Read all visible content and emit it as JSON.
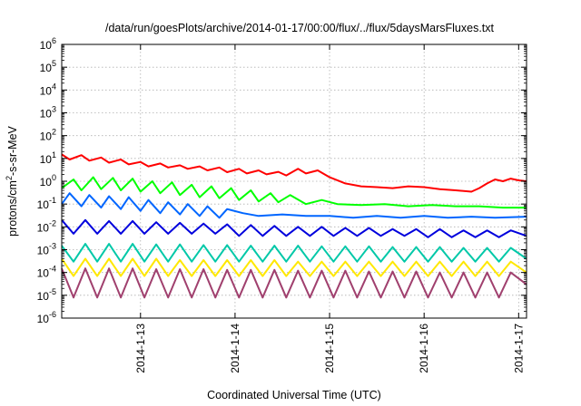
{
  "chart_data": {
    "type": "line",
    "title": "/data/run/goesPlots/archive/2014-01-17/00:00/flux/../flux/5daysMarsFluxes.txt",
    "xlabel": "Coordinated Universal Time (UTC)",
    "ylabel": "protons/cm²-s-sr-MeV",
    "ylabel_parts": {
      "pre": "protons/cm",
      "sup": "2",
      "post": "-s-sr-MeV"
    },
    "yscale": "log",
    "ylim_exponents": [
      -6,
      6
    ],
    "ytick_base": "10",
    "yticks_exponents": [
      "-6",
      "-5",
      "-4",
      "-3",
      "-2",
      "-1",
      "0",
      "1",
      "2",
      "3",
      "4",
      "5",
      "6"
    ],
    "xlim": [
      "2014-01-12T04:00",
      "2014-01-17T02:00"
    ],
    "xticks": [
      {
        "date": "2014-01-13T00:00",
        "label": "2014-1-13"
      },
      {
        "date": "2014-01-14T00:00",
        "label": "2014-1-14"
      },
      {
        "date": "2014-01-15T00:00",
        "label": "2014-1-15"
      },
      {
        "date": "2014-01-16T00:00",
        "label": "2014-1-16"
      },
      {
        "date": "2014-01-17T00:00",
        "label": "2014-1-17"
      }
    ],
    "grid": true,
    "legend": "none",
    "series": [
      {
        "color": "#ff0000",
        "x": [
          "2014-01-12T04:00",
          "2014-01-12T06:00",
          "2014-01-12T09:00",
          "2014-01-12T11:00",
          "2014-01-12T14:00",
          "2014-01-12T16:00",
          "2014-01-12T19:00",
          "2014-01-12T21:00",
          "2014-01-13T00:00",
          "2014-01-13T02:00",
          "2014-01-13T05:00",
          "2014-01-13T07:00",
          "2014-01-13T10:00",
          "2014-01-13T12:00",
          "2014-01-13T15:00",
          "2014-01-13T17:00",
          "2014-01-13T20:00",
          "2014-01-13T22:00",
          "2014-01-14T01:00",
          "2014-01-14T03:00",
          "2014-01-14T06:00",
          "2014-01-14T08:00",
          "2014-01-14T11:00",
          "2014-01-14T13:00",
          "2014-01-14T16:00",
          "2014-01-14T18:00",
          "2014-01-14T21:00",
          "2014-01-15T00:00",
          "2014-01-15T04:00",
          "2014-01-15T08:00",
          "2014-01-15T12:00",
          "2014-01-15T16:00",
          "2014-01-15T20:00",
          "2014-01-16T00:00",
          "2014-01-16T04:00",
          "2014-01-16T08:00",
          "2014-01-16T12:00",
          "2014-01-16T14:00",
          "2014-01-16T16:00",
          "2014-01-16T18:00",
          "2014-01-16T20:00",
          "2014-01-16T22:00",
          "2014-01-17T00:00",
          "2014-01-17T02:00"
        ],
        "values": [
          15,
          9,
          14,
          8,
          11,
          6.5,
          9,
          5.5,
          7,
          4.5,
          6,
          4,
          5,
          3.5,
          4.5,
          3,
          4,
          2.5,
          3.5,
          2.2,
          3,
          2,
          2.6,
          1.8,
          3.5,
          2.2,
          3,
          1.5,
          0.8,
          0.6,
          0.55,
          0.5,
          0.6,
          0.55,
          0.45,
          0.4,
          0.35,
          0.5,
          0.8,
          1.2,
          1.0,
          1.3,
          1.1,
          1.0
        ]
      },
      {
        "color": "#00ff00",
        "x": [
          "2014-01-12T04:00",
          "2014-01-12T07:00",
          "2014-01-12T09:00",
          "2014-01-12T12:00",
          "2014-01-12T14:00",
          "2014-01-12T17:00",
          "2014-01-12T19:00",
          "2014-01-12T22:00",
          "2014-01-13T00:00",
          "2014-01-13T03:00",
          "2014-01-13T05:00",
          "2014-01-13T08:00",
          "2014-01-13T10:00",
          "2014-01-13T13:00",
          "2014-01-13T15:00",
          "2014-01-13T18:00",
          "2014-01-13T20:00",
          "2014-01-13T23:00",
          "2014-01-14T01:00",
          "2014-01-14T04:00",
          "2014-01-14T06:00",
          "2014-01-14T09:00",
          "2014-01-14T11:00",
          "2014-01-14T14:00",
          "2014-01-14T18:00",
          "2014-01-14T22:00",
          "2014-01-15T02:00",
          "2014-01-15T08:00",
          "2014-01-15T14:00",
          "2014-01-15T20:00",
          "2014-01-16T02:00",
          "2014-01-16T08:00",
          "2014-01-16T14:00",
          "2014-01-16T20:00",
          "2014-01-17T02:00"
        ],
        "values": [
          0.5,
          1.2,
          0.4,
          1.5,
          0.45,
          1.4,
          0.4,
          1.3,
          0.35,
          1.0,
          0.3,
          0.9,
          0.25,
          0.7,
          0.2,
          0.6,
          0.18,
          0.5,
          0.15,
          0.4,
          0.13,
          0.3,
          0.12,
          0.25,
          0.1,
          0.15,
          0.1,
          0.09,
          0.1,
          0.08,
          0.09,
          0.08,
          0.08,
          0.07,
          0.07
        ]
      },
      {
        "color": "#0066ff",
        "x": [
          "2014-01-12T04:00",
          "2014-01-12T06:00",
          "2014-01-12T09:00",
          "2014-01-12T11:00",
          "2014-01-12T14:00",
          "2014-01-12T16:00",
          "2014-01-12T19:00",
          "2014-01-12T21:00",
          "2014-01-13T00:00",
          "2014-01-13T02:00",
          "2014-01-13T05:00",
          "2014-01-13T07:00",
          "2014-01-13T10:00",
          "2014-01-13T12:00",
          "2014-01-13T15:00",
          "2014-01-13T17:00",
          "2014-01-13T20:00",
          "2014-01-13T22:00",
          "2014-01-14T02:00",
          "2014-01-14T06:00",
          "2014-01-14T12:00",
          "2014-01-14T18:00",
          "2014-01-15T00:00",
          "2014-01-15T06:00",
          "2014-01-15T12:00",
          "2014-01-15T18:00",
          "2014-01-16T00:00",
          "2014-01-16T06:00",
          "2014-01-16T12:00",
          "2014-01-16T18:00",
          "2014-01-17T02:00"
        ],
        "values": [
          0.1,
          0.3,
          0.08,
          0.25,
          0.07,
          0.22,
          0.06,
          0.2,
          0.05,
          0.15,
          0.04,
          0.12,
          0.035,
          0.1,
          0.03,
          0.08,
          0.025,
          0.06,
          0.04,
          0.03,
          0.035,
          0.03,
          0.03,
          0.025,
          0.03,
          0.025,
          0.03,
          0.025,
          0.028,
          0.025,
          0.028
        ]
      },
      {
        "color": "#0000dd",
        "x": [
          "2014-01-12T04:00",
          "2014-01-12T07:00",
          "2014-01-12T10:00",
          "2014-01-12T13:00",
          "2014-01-12T16:00",
          "2014-01-12T19:00",
          "2014-01-12T22:00",
          "2014-01-13T01:00",
          "2014-01-13T04:00",
          "2014-01-13T07:00",
          "2014-01-13T10:00",
          "2014-01-13T13:00",
          "2014-01-13T16:00",
          "2014-01-13T19:00",
          "2014-01-13T22:00",
          "2014-01-14T01:00",
          "2014-01-14T04:00",
          "2014-01-14T07:00",
          "2014-01-14T10:00",
          "2014-01-14T13:00",
          "2014-01-14T16:00",
          "2014-01-14T19:00",
          "2014-01-14T22:00",
          "2014-01-15T01:00",
          "2014-01-15T04:00",
          "2014-01-15T07:00",
          "2014-01-15T10:00",
          "2014-01-15T13:00",
          "2014-01-15T16:00",
          "2014-01-15T19:00",
          "2014-01-15T22:00",
          "2014-01-16T01:00",
          "2014-01-16T04:00",
          "2014-01-16T07:00",
          "2014-01-16T10:00",
          "2014-01-16T13:00",
          "2014-01-16T16:00",
          "2014-01-16T19:00",
          "2014-01-16T22:00",
          "2014-01-17T02:00"
        ],
        "values": [
          0.02,
          0.005,
          0.02,
          0.005,
          0.018,
          0.005,
          0.018,
          0.005,
          0.016,
          0.005,
          0.015,
          0.005,
          0.014,
          0.005,
          0.013,
          0.004,
          0.012,
          0.004,
          0.011,
          0.004,
          0.01,
          0.004,
          0.01,
          0.004,
          0.009,
          0.004,
          0.009,
          0.004,
          0.008,
          0.004,
          0.008,
          0.0035,
          0.008,
          0.0035,
          0.007,
          0.0035,
          0.007,
          0.0035,
          0.007,
          0.004
        ]
      },
      {
        "color": "#00c8a8",
        "x": [
          "2014-01-12T04:00",
          "2014-01-12T07:00",
          "2014-01-12T10:00",
          "2014-01-12T13:00",
          "2014-01-12T16:00",
          "2014-01-12T19:00",
          "2014-01-12T22:00",
          "2014-01-13T01:00",
          "2014-01-13T04:00",
          "2014-01-13T07:00",
          "2014-01-13T10:00",
          "2014-01-13T13:00",
          "2014-01-13T16:00",
          "2014-01-13T19:00",
          "2014-01-13T22:00",
          "2014-01-14T01:00",
          "2014-01-14T04:00",
          "2014-01-14T07:00",
          "2014-01-14T10:00",
          "2014-01-14T13:00",
          "2014-01-14T16:00",
          "2014-01-14T19:00",
          "2014-01-14T22:00",
          "2014-01-15T01:00",
          "2014-01-15T04:00",
          "2014-01-15T07:00",
          "2014-01-15T10:00",
          "2014-01-15T13:00",
          "2014-01-15T16:00",
          "2014-01-15T19:00",
          "2014-01-15T22:00",
          "2014-01-16T01:00",
          "2014-01-16T04:00",
          "2014-01-16T07:00",
          "2014-01-16T10:00",
          "2014-01-16T13:00",
          "2014-01-16T16:00",
          "2014-01-16T19:00",
          "2014-01-16T22:00",
          "2014-01-17T02:00"
        ],
        "values": [
          0.0015,
          0.0003,
          0.0018,
          0.0003,
          0.0018,
          0.0003,
          0.0018,
          0.0003,
          0.0017,
          0.0003,
          0.0017,
          0.0003,
          0.0016,
          0.0003,
          0.0016,
          0.0003,
          0.0015,
          0.0003,
          0.0015,
          0.0003,
          0.0015,
          0.0003,
          0.0014,
          0.0003,
          0.0014,
          0.0003,
          0.0014,
          0.0003,
          0.0013,
          0.0003,
          0.0013,
          0.0003,
          0.0013,
          0.0003,
          0.0012,
          0.0003,
          0.0012,
          0.0003,
          0.0012,
          0.0004
        ]
      },
      {
        "color": "#ffe800",
        "x": [
          "2014-01-12T04:00",
          "2014-01-12T07:00",
          "2014-01-12T10:00",
          "2014-01-12T13:00",
          "2014-01-12T16:00",
          "2014-01-12T19:00",
          "2014-01-12T22:00",
          "2014-01-13T01:00",
          "2014-01-13T04:00",
          "2014-01-13T07:00",
          "2014-01-13T10:00",
          "2014-01-13T13:00",
          "2014-01-13T16:00",
          "2014-01-13T19:00",
          "2014-01-13T22:00",
          "2014-01-14T01:00",
          "2014-01-14T04:00",
          "2014-01-14T07:00",
          "2014-01-14T10:00",
          "2014-01-14T13:00",
          "2014-01-14T16:00",
          "2014-01-14T19:00",
          "2014-01-14T22:00",
          "2014-01-15T01:00",
          "2014-01-15T04:00",
          "2014-01-15T07:00",
          "2014-01-15T10:00",
          "2014-01-15T13:00",
          "2014-01-15T16:00",
          "2014-01-15T19:00",
          "2014-01-15T22:00",
          "2014-01-16T01:00",
          "2014-01-16T04:00",
          "2014-01-16T07:00",
          "2014-01-16T10:00",
          "2014-01-16T13:00",
          "2014-01-16T16:00",
          "2014-01-16T19:00",
          "2014-01-16T22:00",
          "2014-01-17T02:00"
        ],
        "values": [
          0.0004,
          7e-05,
          0.0004,
          7e-05,
          0.0004,
          7e-05,
          0.0004,
          7e-05,
          0.0004,
          7e-05,
          0.00035,
          7e-05,
          0.00035,
          7e-05,
          0.00035,
          7e-05,
          0.00035,
          7e-05,
          0.00035,
          7e-05,
          0.0003,
          7e-05,
          0.0003,
          7e-05,
          0.0003,
          7e-05,
          0.0003,
          7e-05,
          0.0003,
          7e-05,
          0.0003,
          7e-05,
          0.0003,
          7e-05,
          0.0003,
          7e-05,
          0.0003,
          7e-05,
          0.0003,
          0.0001
        ]
      },
      {
        "color": "#a0406e",
        "x": [
          "2014-01-12T04:00",
          "2014-01-12T07:00",
          "2014-01-12T10:00",
          "2014-01-12T13:00",
          "2014-01-12T16:00",
          "2014-01-12T19:00",
          "2014-01-12T22:00",
          "2014-01-13T01:00",
          "2014-01-13T04:00",
          "2014-01-13T07:00",
          "2014-01-13T10:00",
          "2014-01-13T13:00",
          "2014-01-13T16:00",
          "2014-01-13T19:00",
          "2014-01-13T22:00",
          "2014-01-14T01:00",
          "2014-01-14T04:00",
          "2014-01-14T07:00",
          "2014-01-14T10:00",
          "2014-01-14T13:00",
          "2014-01-14T16:00",
          "2014-01-14T19:00",
          "2014-01-14T22:00",
          "2014-01-15T01:00",
          "2014-01-15T04:00",
          "2014-01-15T07:00",
          "2014-01-15T10:00",
          "2014-01-15T13:00",
          "2014-01-15T16:00",
          "2014-01-15T19:00",
          "2014-01-15T22:00",
          "2014-01-16T01:00",
          "2014-01-16T04:00",
          "2014-01-16T07:00",
          "2014-01-16T10:00",
          "2014-01-16T13:00",
          "2014-01-16T16:00",
          "2014-01-16T19:00",
          "2014-01-16T22:00",
          "2014-01-17T02:00"
        ],
        "values": [
          0.00015,
          8e-06,
          0.00015,
          8e-06,
          0.00015,
          8e-06,
          0.00015,
          8e-06,
          0.00014,
          8e-06,
          0.00014,
          8e-06,
          0.00014,
          8e-06,
          0.00013,
          8e-06,
          0.00013,
          8e-06,
          0.00013,
          8e-06,
          0.00012,
          8e-06,
          0.00012,
          8e-06,
          0.00012,
          8e-06,
          0.00011,
          8e-06,
          0.00011,
          8e-06,
          0.00011,
          8e-06,
          0.0001,
          8e-06,
          0.0001,
          8e-06,
          0.0001,
          8e-06,
          0.0001,
          3e-05
        ]
      }
    ]
  }
}
